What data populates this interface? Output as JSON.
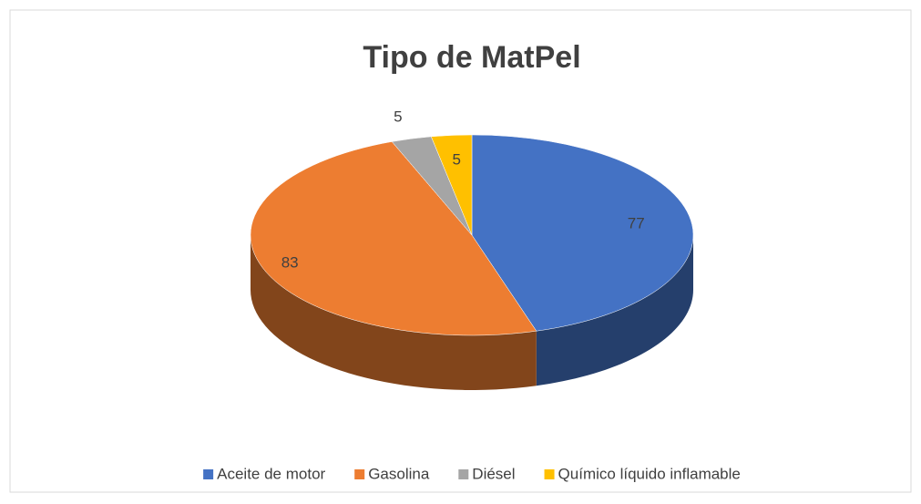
{
  "chart_data": {
    "type": "pie",
    "title": "Tipo de MatPel",
    "categories": [
      "Aceite de motor",
      "Gasolina",
      "Diésel",
      "Químico líquido inflamable"
    ],
    "values": [
      77,
      83,
      5,
      5
    ],
    "colors": [
      "#4472c4",
      "#ed7d31",
      "#a5a5a5",
      "#ffc000"
    ],
    "legend": "bottom"
  }
}
